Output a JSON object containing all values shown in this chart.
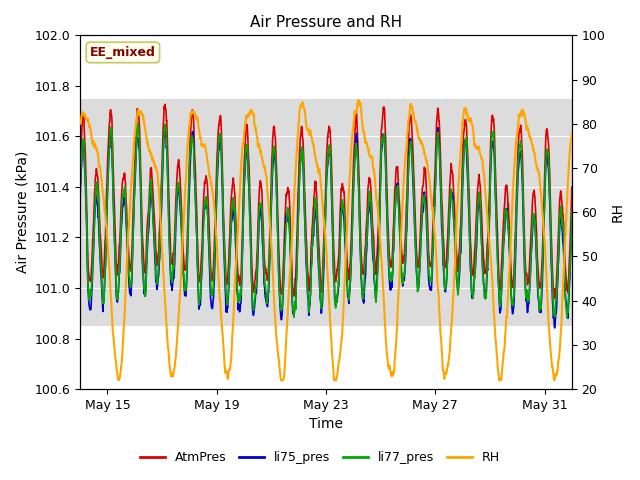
{
  "title": "Air Pressure and RH",
  "xlabel": "Time",
  "ylabel_left": "Air Pressure (kPa)",
  "ylabel_right": "RH",
  "ylim_left": [
    100.6,
    102.0
  ],
  "ylim_right": [
    20,
    100
  ],
  "yticks_left": [
    100.6,
    100.8,
    101.0,
    101.2,
    101.4,
    101.6,
    101.8,
    102.0
  ],
  "yticks_right": [
    20,
    30,
    40,
    50,
    60,
    70,
    80,
    90,
    100
  ],
  "xtick_days": [
    1,
    5,
    9,
    13,
    17
  ],
  "xtick_labels": [
    "May 15",
    "May 19",
    "May 23",
    "May 27",
    "May 31"
  ],
  "xlim": [
    0,
    18
  ],
  "annotation_text": "EE_mixed",
  "annotation_color": "#8B0000",
  "annotation_bg": "#FFFFF0",
  "annotation_edge": "#C8C860",
  "bg_band_color": "#DCDCDC",
  "bg_band_ymin": 100.85,
  "bg_band_ymax": 101.75,
  "colors": {
    "AtmPres": "#DD0000",
    "li75_pres": "#0000CC",
    "li77_pres": "#00AA00",
    "RH": "#FFA500"
  },
  "line_widths": {
    "AtmPres": 1.2,
    "li75_pres": 1.2,
    "li77_pres": 1.2,
    "RH": 1.5
  },
  "figsize": [
    6.4,
    4.8
  ],
  "dpi": 100
}
